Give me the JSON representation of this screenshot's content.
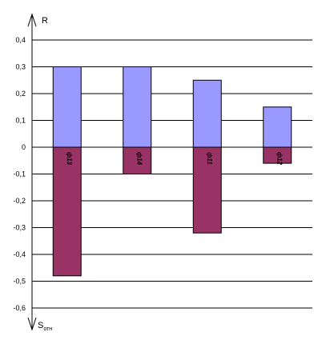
{
  "chart_data": {
    "type": "bar",
    "categories": [
      "ф13",
      "ф14",
      "ф11",
      "ф12"
    ],
    "series": [
      {
        "values": [
          0.3,
          0.3,
          0.25,
          0.15
        ]
      },
      {
        "values": [
          -0.48,
          -0.1,
          -0.32,
          -0.06
        ]
      }
    ],
    "ylim": [
      -0.6,
      0.4
    ],
    "yticks": [
      "0,4",
      "0,3",
      "0,2",
      "0,1",
      "0",
      "-0,1",
      "-0,2",
      "-0,3",
      "-0,4",
      "-0,5",
      "-0,6"
    ],
    "ylabel_top": "R",
    "ylabel_bottom_main": "S",
    "ylabel_bottom_sub": "отн",
    "grid": true,
    "colors": {
      "positive": "#9999FF",
      "negative": "#993366",
      "grid": "#000000"
    }
  }
}
